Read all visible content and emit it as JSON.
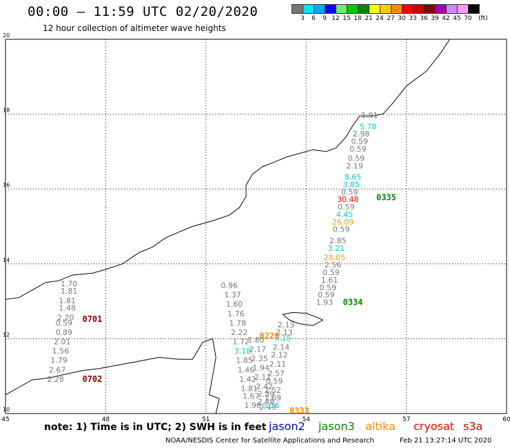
{
  "header": {
    "title": "00:00 – 11:59 UTC 02/20/2020",
    "subtitle": "12 hour collection of altimeter wave heights"
  },
  "legend": {
    "colors": [
      "#777777",
      "#00e5ff",
      "#00a8ff",
      "#0000ff",
      "#66ee66",
      "#00cc00",
      "#008800",
      "#ffff00",
      "#ffcc00",
      "#ff8800",
      "#ff0000",
      "#cc0000",
      "#880000",
      "#aa00aa",
      "#cc88ff",
      "#ff99ff",
      "#000000"
    ],
    "labels": [
      "3",
      "6",
      "9",
      "12",
      "15",
      "18",
      "21",
      "24",
      "27",
      "30",
      "33",
      "36",
      "39",
      "42",
      "45",
      "70",
      "(ft)"
    ]
  },
  "chart_data": {
    "type": "map",
    "xlim": [
      45,
      60
    ],
    "ylim": [
      10,
      20
    ],
    "grid": true,
    "x_ticks": [
      "45",
      "48",
      "51",
      "54",
      "57",
      "60"
    ],
    "y_ticks": [
      "10",
      "12",
      "14",
      "16",
      "18",
      "20"
    ],
    "tracks": [
      {
        "label": "0701",
        "color": "#800000",
        "points": [
          {
            "lon": 46.9,
            "lat": 13.4,
            "swh": "1.70"
          },
          {
            "lon": 46.9,
            "lat": 13.2,
            "swh": "1.81"
          },
          {
            "lon": 46.85,
            "lat": 12.95,
            "swh": "1.81"
          },
          {
            "lon": 46.85,
            "lat": 12.75,
            "swh": "1.48"
          },
          {
            "lon": 46.8,
            "lat": 12.5,
            "swh": "2.20"
          },
          {
            "lon": 46.75,
            "lat": 12.35,
            "swh": "0.59"
          },
          {
            "lon": 46.75,
            "lat": 12.1,
            "swh": "0.89"
          },
          {
            "lon": 46.7,
            "lat": 11.85,
            "swh": "2.01"
          },
          {
            "lon": 46.65,
            "lat": 11.6,
            "swh": "1.56"
          },
          {
            "lon": 46.6,
            "lat": 11.35,
            "swh": "1.79"
          },
          {
            "lon": 46.55,
            "lat": 11.1,
            "swh": "2.67"
          },
          {
            "lon": 46.5,
            "lat": 10.85,
            "swh": "2.28"
          }
        ]
      },
      {
        "label": "0702",
        "color": "#800000",
        "points": []
      },
      {
        "label": "0220",
        "color": "#ff8800",
        "points": [
          {
            "lon": 51.7,
            "lat": 13.35,
            "swh": "0.96"
          },
          {
            "lon": 51.8,
            "lat": 13.1,
            "swh": "1.37"
          },
          {
            "lon": 51.85,
            "lat": 12.85,
            "swh": "1.60"
          },
          {
            "lon": 51.9,
            "lat": 12.6,
            "swh": "1.76"
          },
          {
            "lon": 51.95,
            "lat": 12.35,
            "swh": "1.78"
          },
          {
            "lon": 52.0,
            "lat": 12.1,
            "swh": "2.22"
          },
          {
            "lon": 52.05,
            "lat": 11.85,
            "swh": "1.72"
          },
          {
            "lon": 52.1,
            "lat": 11.6,
            "swh": "3.18"
          },
          {
            "lon": 52.15,
            "lat": 11.35,
            "swh": "1.85"
          },
          {
            "lon": 52.2,
            "lat": 11.1,
            "swh": "1.46"
          },
          {
            "lon": 52.25,
            "lat": 10.85,
            "swh": "1.42"
          },
          {
            "lon": 52.3,
            "lat": 10.6,
            "swh": "1.81"
          },
          {
            "lon": 52.35,
            "lat": 10.4,
            "swh": "1.67"
          },
          {
            "lon": 52.4,
            "lat": 10.15,
            "swh": "1.96"
          }
        ]
      },
      {
        "label": "0333",
        "color": "#ff8800",
        "points": [
          {
            "lon": 52.5,
            "lat": 11.9,
            "swh": "1.80"
          },
          {
            "lon": 52.55,
            "lat": 11.65,
            "swh": "2.17"
          },
          {
            "lon": 52.6,
            "lat": 11.4,
            "swh": "2.35"
          },
          {
            "lon": 52.65,
            "lat": 11.15,
            "swh": "1.94"
          },
          {
            "lon": 52.7,
            "lat": 10.9,
            "swh": "2.11"
          },
          {
            "lon": 52.75,
            "lat": 10.65,
            "swh": "2.42"
          },
          {
            "lon": 52.8,
            "lat": 10.45,
            "swh": "2.39"
          },
          {
            "lon": 52.8,
            "lat": 10.25,
            "swh": "2.48"
          },
          {
            "lon": 52.85,
            "lat": 10.1,
            "swh": "2.43"
          }
        ]
      },
      {
        "label": "0334",
        "color": "#008800",
        "points": [
          {
            "lon": 53.4,
            "lat": 12.3,
            "swh": "2.13"
          },
          {
            "lon": 53.35,
            "lat": 12.1,
            "swh": "2.13"
          },
          {
            "lon": 53.3,
            "lat": 11.95,
            "swh": "3.15"
          },
          {
            "lon": 53.25,
            "lat": 11.7,
            "swh": "2.14"
          },
          {
            "lon": 53.2,
            "lat": 11.5,
            "swh": "2.12"
          },
          {
            "lon": 53.15,
            "lat": 11.25,
            "swh": "2.11"
          },
          {
            "lon": 53.1,
            "lat": 11.0,
            "swh": "2.57"
          },
          {
            "lon": 53.05,
            "lat": 10.8,
            "swh": "0.59"
          },
          {
            "lon": 53.0,
            "lat": 10.55,
            "swh": "2.52"
          },
          {
            "lon": 53.0,
            "lat": 10.35,
            "swh": "1.69"
          },
          {
            "lon": 52.95,
            "lat": 10.15,
            "swh": "3.16"
          }
        ]
      },
      {
        "label": "0335",
        "color": "#008800",
        "points": [
          {
            "lon": 55.9,
            "lat": 17.9,
            "swh": "1.91"
          },
          {
            "lon": 55.85,
            "lat": 17.6,
            "swh": "5.78"
          },
          {
            "lon": 55.65,
            "lat": 17.4,
            "swh": "2.98"
          },
          {
            "lon": 55.6,
            "lat": 17.2,
            "swh": "0.59"
          },
          {
            "lon": 55.55,
            "lat": 17.0,
            "swh": "0.59"
          },
          {
            "lon": 55.5,
            "lat": 16.75,
            "swh": "0.59"
          },
          {
            "lon": 55.45,
            "lat": 16.55,
            "swh": "2.19"
          },
          {
            "lon": 55.4,
            "lat": 16.25,
            "swh": "8.65"
          },
          {
            "lon": 55.35,
            "lat": 16.05,
            "swh": "3.85"
          },
          {
            "lon": 55.3,
            "lat": 15.85,
            "swh": "0.59"
          },
          {
            "lon": 55.25,
            "lat": 15.65,
            "swh": "30.48"
          },
          {
            "lon": 55.2,
            "lat": 15.45,
            "swh": "0.59"
          },
          {
            "lon": 55.15,
            "lat": 15.25,
            "swh": "4.45"
          },
          {
            "lon": 55.1,
            "lat": 15.05,
            "swh": "26.09"
          },
          {
            "lon": 55.05,
            "lat": 14.85,
            "swh": "0.59"
          },
          {
            "lon": 54.95,
            "lat": 14.55,
            "swh": "2.85"
          },
          {
            "lon": 54.9,
            "lat": 14.35,
            "swh": "3.21"
          },
          {
            "lon": 54.85,
            "lat": 14.1,
            "swh": "28.05"
          },
          {
            "lon": 54.8,
            "lat": 13.9,
            "swh": "2.56"
          },
          {
            "lon": 54.75,
            "lat": 13.7,
            "swh": "0.59"
          },
          {
            "lon": 54.7,
            "lat": 13.5,
            "swh": "1.61"
          },
          {
            "lon": 54.65,
            "lat": 13.3,
            "swh": "0.59"
          },
          {
            "lon": 54.6,
            "lat": 13.1,
            "swh": "0.59"
          },
          {
            "lon": 54.55,
            "lat": 12.9,
            "swh": "1.93"
          }
        ]
      }
    ]
  },
  "footer": {
    "note": "note: 1) Time is in UTC; 2) SWH is in feet",
    "satellites": [
      {
        "name": "jason2",
        "color": "#0000cc"
      },
      {
        "name": "jason3",
        "color": "#008800"
      },
      {
        "name": "altika",
        "color": "#ff8800"
      },
      {
        "name": "cryosat",
        "color": "#ff0000"
      },
      {
        "name": "s3a",
        "color": "#cc0000"
      }
    ],
    "credit": "NOAA/NESDIS Center for Satellite Applications and Research",
    "timestamp": "Feb 21 13:27:14 UTC 2020"
  }
}
